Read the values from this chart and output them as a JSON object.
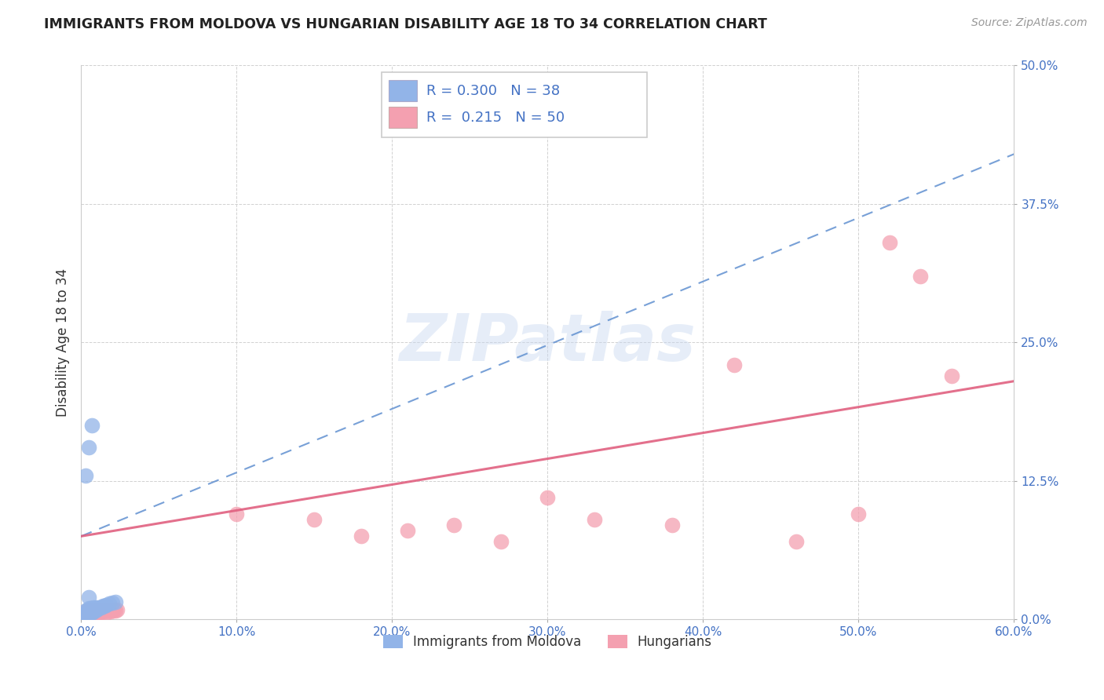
{
  "title": "IMMIGRANTS FROM MOLDOVA VS HUNGARIAN DISABILITY AGE 18 TO 34 CORRELATION CHART",
  "source": "Source: ZipAtlas.com",
  "ylabel": "Disability Age 18 to 34",
  "xlim": [
    0.0,
    0.6
  ],
  "ylim": [
    0.0,
    0.5
  ],
  "xticks": [
    0.0,
    0.1,
    0.2,
    0.3,
    0.4,
    0.5,
    0.6
  ],
  "yticks": [
    0.0,
    0.125,
    0.25,
    0.375,
    0.5
  ],
  "xticklabels": [
    "0.0%",
    "10.0%",
    "20.0%",
    "30.0%",
    "40.0%",
    "50.0%",
    "60.0%"
  ],
  "yticklabels": [
    "0.0%",
    "12.5%",
    "25.0%",
    "37.5%",
    "50.0%"
  ],
  "moldova_R": 0.3,
  "moldova_N": 38,
  "hungarian_R": 0.215,
  "hungarian_N": 50,
  "moldova_color": "#92b4e8",
  "hungarian_color": "#f4a0b0",
  "moldova_line_color": "#6090d0",
  "hungarian_line_color": "#e06080",
  "watermark": "ZIPatlas",
  "legend_label_moldova": "Immigrants from Moldova",
  "legend_label_hungarian": "Hungarians",
  "moldova_line": [
    0.075,
    0.42
  ],
  "hungarian_line": [
    0.075,
    0.215
  ],
  "moldova_x": [
    0.002,
    0.003,
    0.003,
    0.003,
    0.004,
    0.004,
    0.005,
    0.005,
    0.005,
    0.005,
    0.005,
    0.006,
    0.006,
    0.006,
    0.007,
    0.007,
    0.007,
    0.007,
    0.008,
    0.008,
    0.008,
    0.009,
    0.009,
    0.01,
    0.01,
    0.011,
    0.012,
    0.013,
    0.014,
    0.015,
    0.016,
    0.018,
    0.02,
    0.022,
    0.003,
    0.005,
    0.007,
    0.005
  ],
  "moldova_y": [
    0.005,
    0.005,
    0.005,
    0.008,
    0.005,
    0.008,
    0.005,
    0.006,
    0.007,
    0.008,
    0.01,
    0.006,
    0.008,
    0.01,
    0.006,
    0.008,
    0.009,
    0.01,
    0.007,
    0.009,
    0.011,
    0.008,
    0.01,
    0.009,
    0.011,
    0.01,
    0.011,
    0.011,
    0.012,
    0.012,
    0.013,
    0.014,
    0.015,
    0.016,
    0.13,
    0.155,
    0.175,
    0.02
  ],
  "hungarian_x": [
    0.002,
    0.003,
    0.003,
    0.004,
    0.004,
    0.005,
    0.005,
    0.005,
    0.006,
    0.006,
    0.007,
    0.007,
    0.008,
    0.008,
    0.008,
    0.009,
    0.009,
    0.01,
    0.01,
    0.01,
    0.011,
    0.012,
    0.012,
    0.013,
    0.014,
    0.015,
    0.016,
    0.016,
    0.017,
    0.018,
    0.019,
    0.02,
    0.021,
    0.022,
    0.023,
    0.1,
    0.15,
    0.18,
    0.21,
    0.24,
    0.27,
    0.3,
    0.33,
    0.38,
    0.42,
    0.46,
    0.5,
    0.52,
    0.54,
    0.56
  ],
  "hungarian_y": [
    0.005,
    0.004,
    0.007,
    0.005,
    0.008,
    0.004,
    0.006,
    0.008,
    0.005,
    0.007,
    0.006,
    0.008,
    0.005,
    0.007,
    0.009,
    0.006,
    0.008,
    0.005,
    0.007,
    0.009,
    0.008,
    0.006,
    0.009,
    0.007,
    0.008,
    0.007,
    0.006,
    0.009,
    0.008,
    0.009,
    0.007,
    0.008,
    0.009,
    0.008,
    0.009,
    0.095,
    0.09,
    0.075,
    0.08,
    0.085,
    0.07,
    0.11,
    0.09,
    0.085,
    0.23,
    0.07,
    0.095,
    0.34,
    0.31,
    0.22
  ]
}
